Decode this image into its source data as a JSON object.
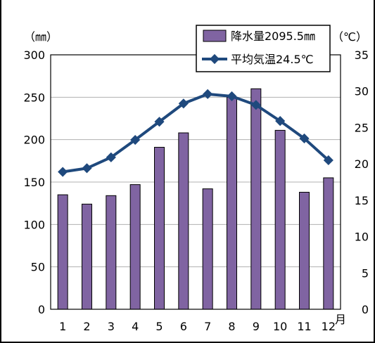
{
  "chart_data": {
    "type": "bar+line",
    "categories": [
      "1",
      "2",
      "3",
      "4",
      "5",
      "6",
      "7",
      "8",
      "9",
      "10",
      "11",
      "12"
    ],
    "x_unit_label": "月",
    "series": [
      {
        "name": "降水量2095.5㎜",
        "kind": "bar",
        "axis": "left",
        "color": "#8064a2",
        "values": [
          135,
          124,
          134,
          147,
          191,
          208,
          142,
          250,
          260,
          211,
          138,
          155
        ]
      },
      {
        "name": "平均気温24.5℃",
        "kind": "line",
        "axis": "right",
        "color": "#1f497d",
        "values": [
          18.9,
          19.4,
          20.9,
          23.3,
          25.8,
          28.3,
          29.6,
          29.3,
          28.1,
          25.9,
          23.5,
          20.5
        ]
      }
    ],
    "left_axis": {
      "unit_label": "（㎜）",
      "ylim": [
        0,
        300
      ],
      "ticks": [
        "0",
        "50",
        "100",
        "150",
        "200",
        "250",
        "300"
      ]
    },
    "right_axis": {
      "unit_label": "（℃）",
      "ylim": [
        0,
        35
      ],
      "ticks": [
        "0",
        "5",
        "10",
        "15",
        "20",
        "25",
        "30",
        "35"
      ]
    },
    "legend_position": "top-right",
    "grid": "horizontal"
  }
}
